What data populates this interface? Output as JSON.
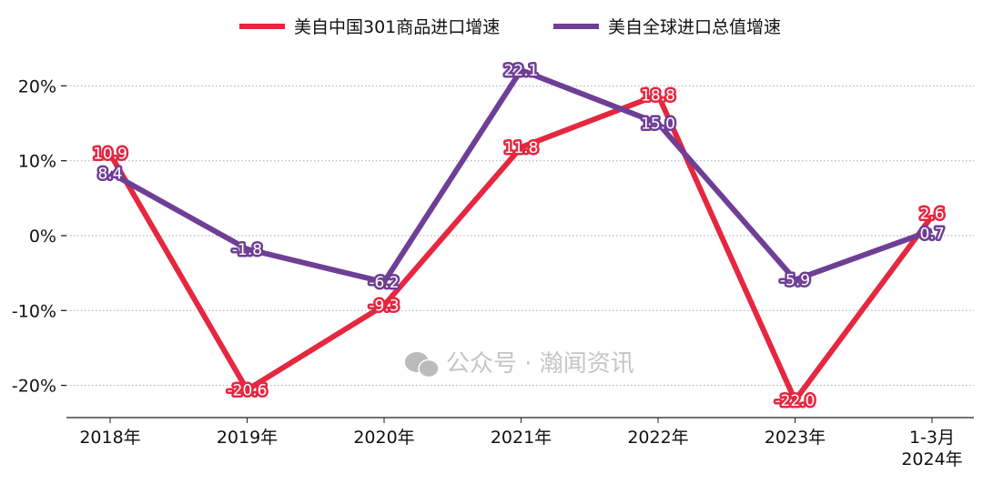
{
  "chart_data": {
    "type": "line",
    "categories": [
      "2018年",
      "2019年",
      "2020年",
      "2021年",
      "2022年",
      "2023年",
      "1-3月\n2024年"
    ],
    "series": [
      {
        "name": "美自中国301商品进口增速",
        "color": "#E52740",
        "values": [
          10.9,
          -20.6,
          -9.3,
          11.8,
          18.8,
          -22.0,
          2.6
        ]
      },
      {
        "name": "美自全球进口总值增速",
        "color": "#6E3F95",
        "values": [
          8.4,
          -1.8,
          -6.2,
          22.1,
          15.0,
          -5.9,
          0.7
        ]
      }
    ],
    "y_ticks": [
      20,
      10,
      0,
      -10,
      -20
    ],
    "y_tick_labels": [
      "20%",
      "10%",
      "0%",
      "-10%",
      "-20%"
    ],
    "ylim": [
      -24.5,
      25
    ],
    "grid": "horizontal dotted",
    "legend": "top",
    "data_labels": true
  },
  "watermark": "公众号 · 瀚闻资讯"
}
